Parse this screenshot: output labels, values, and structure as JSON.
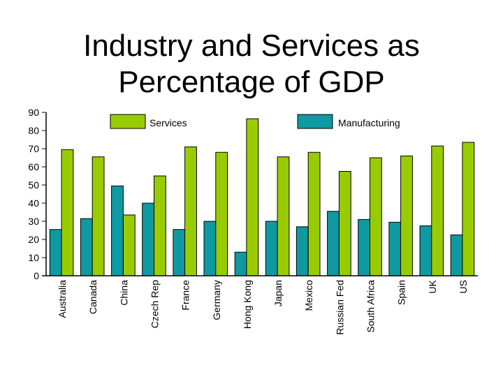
{
  "chart_data": {
    "type": "bar",
    "title_line1": "Industry and Services as",
    "title_line2": "Percentage of GDP",
    "categories": [
      "Australia",
      "Canada",
      "China",
      "Czech Rep",
      "France",
      "Germany",
      "Hong Kong",
      "Japan",
      "Mexico",
      "Russian Fed",
      "South Africa",
      "Spain",
      "UK",
      "US"
    ],
    "series": [
      {
        "name": "Manufacturing",
        "color": "#0e9aa0",
        "values": [
          25.5,
          31.5,
          49.5,
          40,
          25.5,
          30,
          13,
          30,
          27,
          35.5,
          31,
          29.5,
          27.5,
          22.5
        ]
      },
      {
        "name": "Services",
        "color": "#99cc00",
        "values": [
          69.5,
          65.5,
          33.5,
          55,
          71,
          68,
          86.5,
          65.5,
          68,
          57.5,
          65,
          66,
          71.5,
          73.5
        ]
      }
    ],
    "ylim": [
      0,
      90
    ],
    "yticks": [
      "0",
      "10",
      "20",
      "30",
      "40",
      "50",
      "60",
      "70",
      "80",
      "90"
    ],
    "legend": {
      "services_label": "Services",
      "manufacturing_label": "Manufacturing",
      "placement": "top"
    }
  }
}
